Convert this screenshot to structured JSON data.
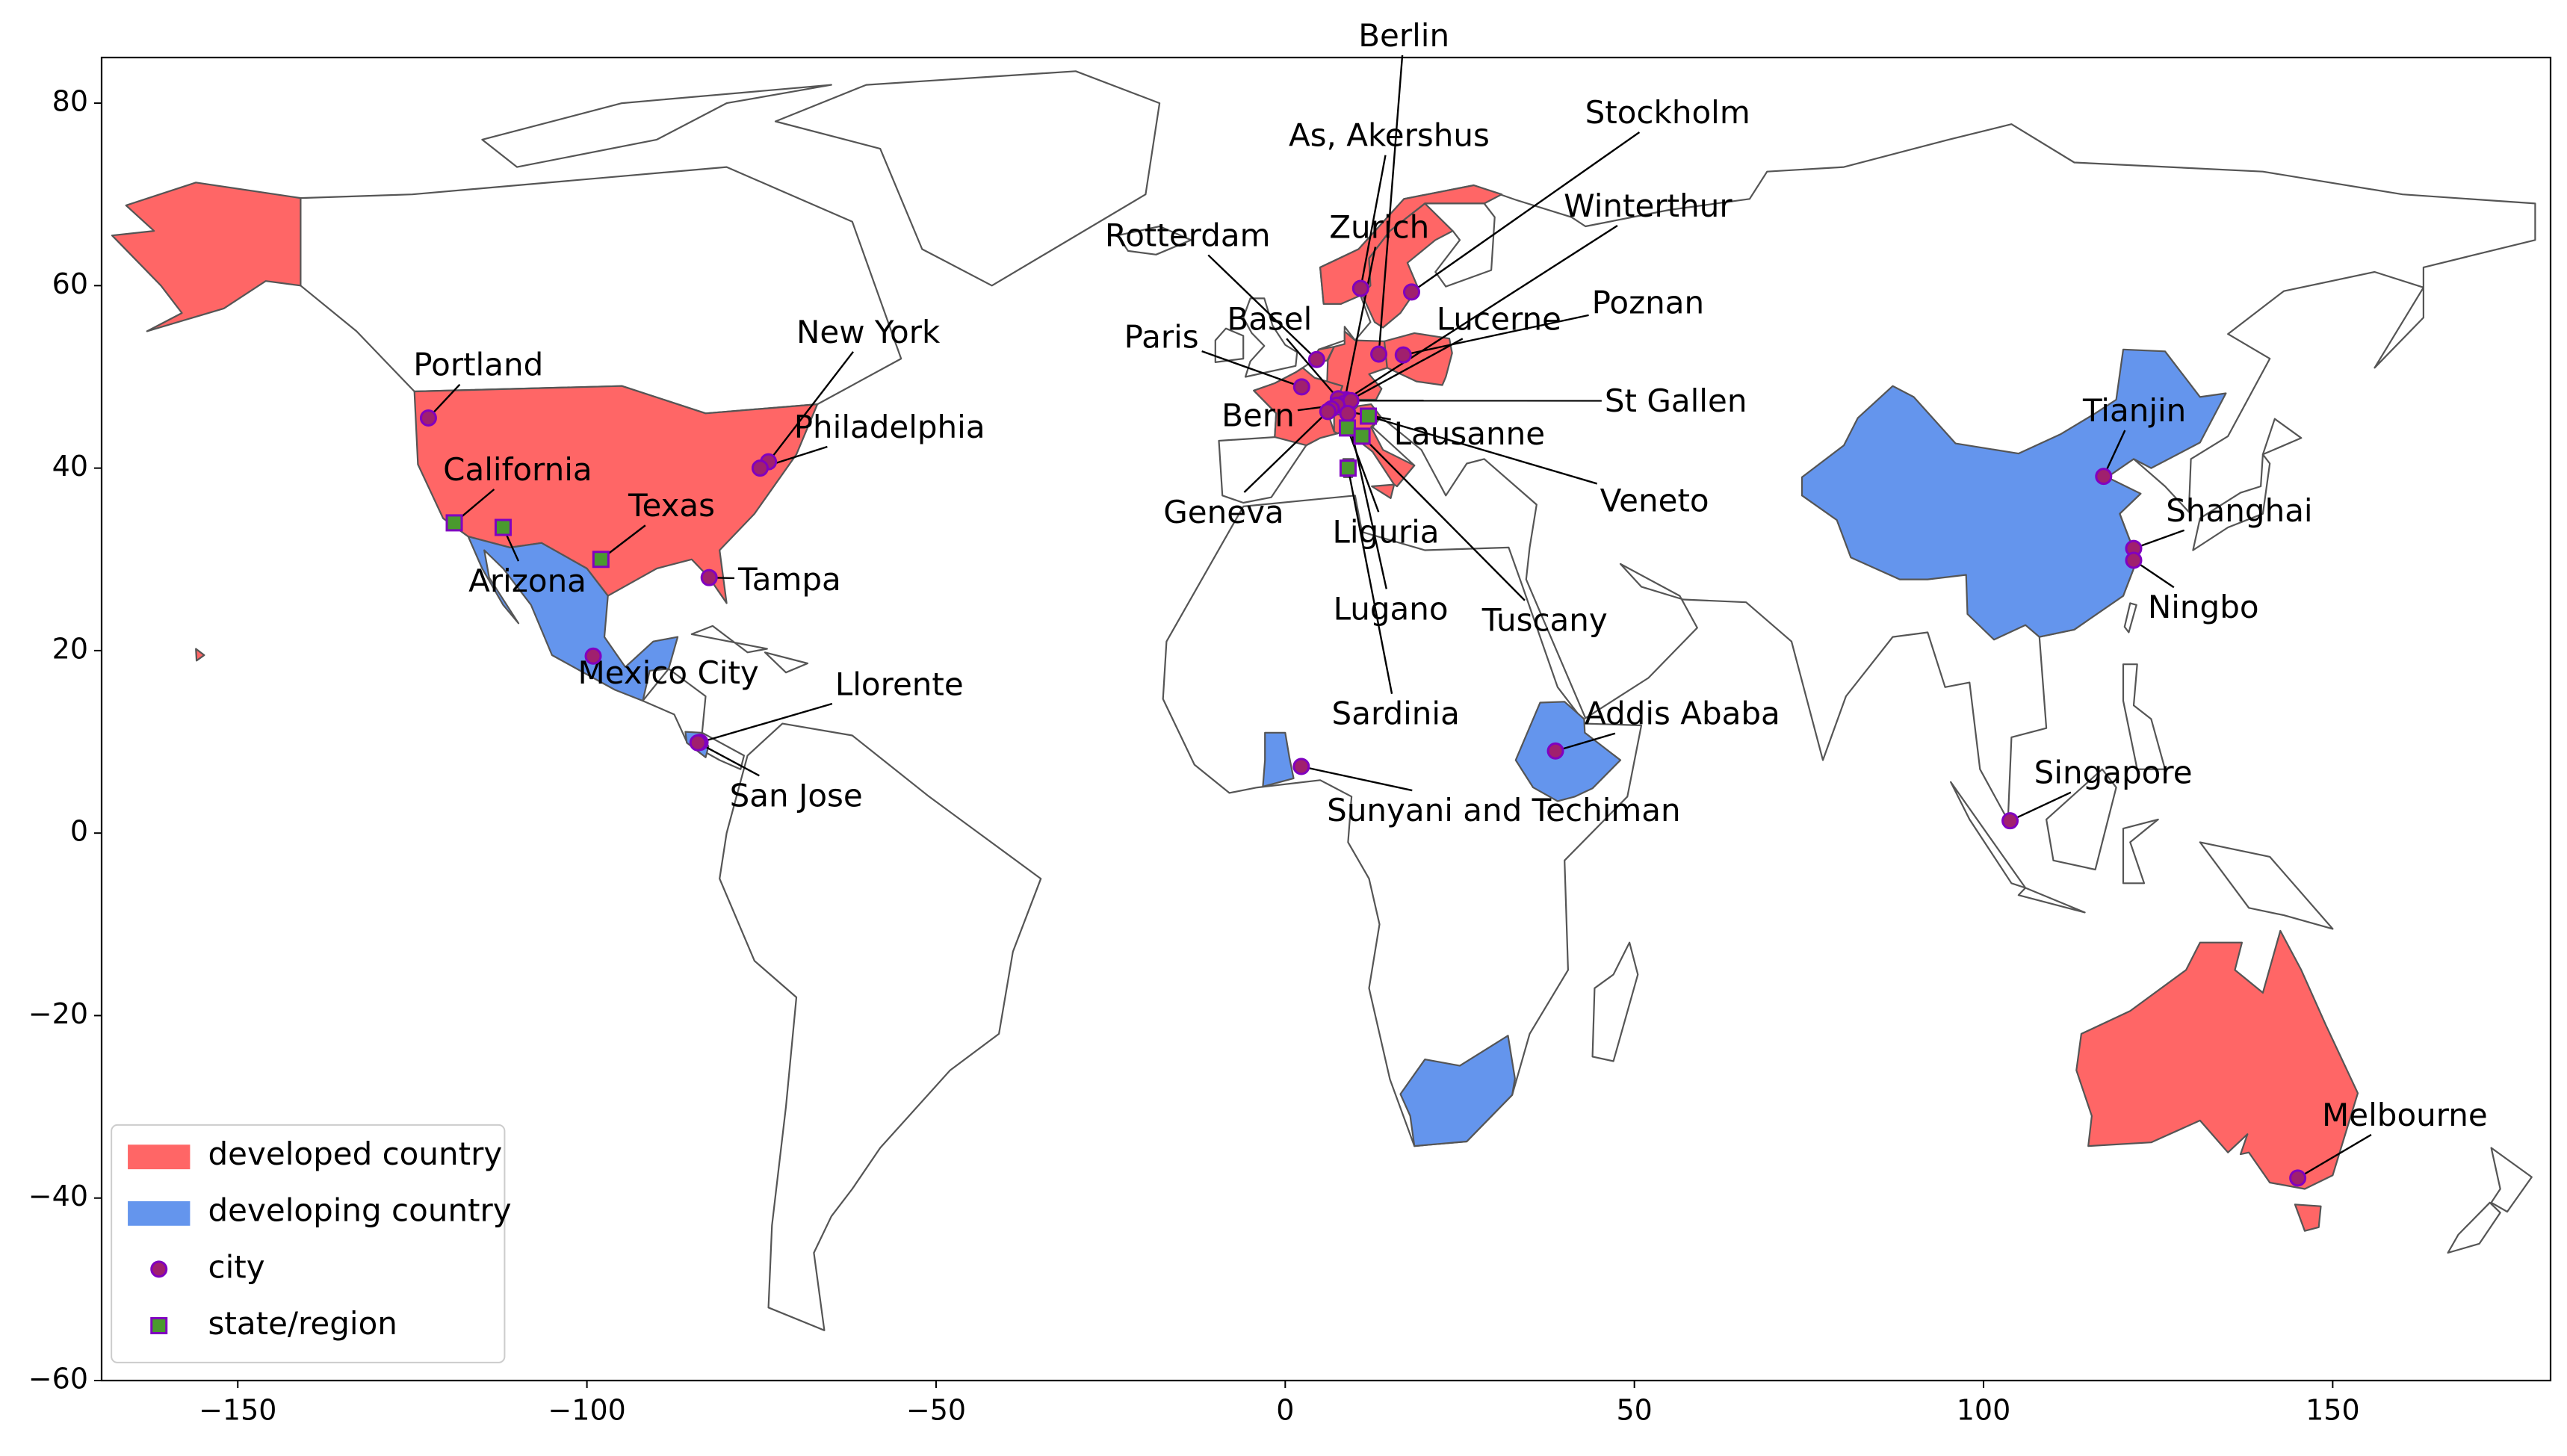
{
  "chart_data": {
    "type": "map",
    "xlim": [
      -169.5,
      181.2
    ],
    "ylim": [
      -60,
      85
    ],
    "xticks": [
      {
        "value": -150,
        "label": "−150"
      },
      {
        "value": -100,
        "label": "−100"
      },
      {
        "value": -50,
        "label": "−50"
      },
      0,
      50,
      100,
      150
    ],
    "yticks": [
      {
        "value": -60,
        "label": "−60"
      },
      {
        "value": -40,
        "label": "−40"
      },
      {
        "value": -20,
        "label": "−20"
      },
      0,
      20,
      40,
      60,
      80
    ],
    "legend": "lower left",
    "regions": [
      {
        "name": "developed country",
        "color": "#ff6666"
      },
      {
        "name": "developing country",
        "color": "#6495ed"
      }
    ],
    "series": [
      {
        "name": "city",
        "marker": "circle",
        "color": "#a0206e",
        "edgecolor": "#8000c0",
        "labels": [
          "Portland",
          "New York",
          "Philadelphia",
          "Tampa",
          "Mexico City",
          "Llorente",
          "San Jose",
          "Sunyani and Techiman",
          "Addis Ababa",
          "Tianjin",
          "Shanghai",
          "Ningbo",
          "Singapore",
          "Melbourne",
          "Berlin",
          "As, Akershus",
          "Stockholm",
          "Zurich",
          "Winterthur",
          "Rotterdam",
          "Poznan",
          "Basel",
          "Lucerne",
          "Paris",
          "St Gallen",
          "Bern",
          "Lausanne",
          "Geneva",
          "Lugano"
        ],
        "x": [
          -122.7,
          -74.0,
          -75.2,
          -82.5,
          -99.1,
          -83.8,
          -84.1,
          2.3,
          38.7,
          117.2,
          121.5,
          121.5,
          103.8,
          145.0,
          13.4,
          10.8,
          18.1,
          8.5,
          8.7,
          4.5,
          16.9,
          7.6,
          8.3,
          2.35,
          9.4,
          7.4,
          6.6,
          6.1,
          8.95
        ],
        "values": [
          45.5,
          40.7,
          40.0,
          28.0,
          19.4,
          9.95,
          9.9,
          7.3,
          9.0,
          39.1,
          31.2,
          29.9,
          1.35,
          -37.8,
          52.5,
          59.7,
          59.3,
          47.4,
          47.5,
          51.9,
          52.4,
          47.6,
          47.05,
          48.9,
          47.4,
          46.9,
          46.5,
          46.2,
          46.0
        ]
      },
      {
        "name": "state/region",
        "marker": "square",
        "color": "#4a9a2e",
        "edgecolor": "#8000c0",
        "labels": [
          "California",
          "Arizona",
          "Texas",
          "Veneto",
          "Liguria",
          "Tuscany",
          "Sardinia"
        ],
        "x": [
          -119.0,
          -112.0,
          -98.0,
          11.9,
          8.9,
          11.0,
          9.0
        ],
        "values": [
          34.0,
          33.5,
          30.0,
          45.7,
          44.4,
          43.5,
          40.0
        ]
      }
    ]
  }
}
